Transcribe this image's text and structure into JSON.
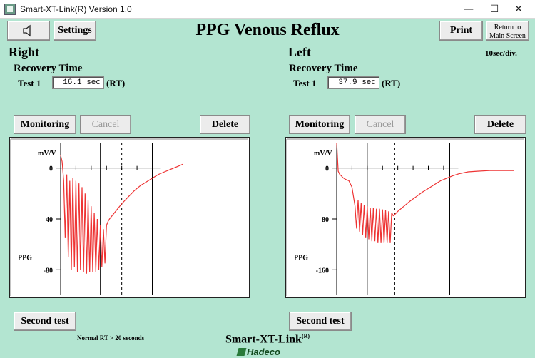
{
  "window": {
    "title": "Smart-XT-Link(R)  Version 1.0",
    "minimize": "—",
    "maximize": "☐",
    "close": "✕"
  },
  "toolbar": {
    "settings_label": "Settings",
    "print_label": "Print",
    "return_line1": "Return to",
    "return_line2": "Main Screen"
  },
  "header": {
    "title": "PPG Venous Reflux",
    "time_scale": "10sec/div."
  },
  "right": {
    "side_label": "Right",
    "recovery_label": "Recovery Time",
    "test_label": "Test 1",
    "rt_value": "16.1 sec",
    "rt_unit": "(RT)",
    "monitoring_label": "Monitoring",
    "cancel_label": "Cancel",
    "delete_label": "Delete",
    "second_test_label": "Second test"
  },
  "left": {
    "side_label": "Left",
    "recovery_label": "Recovery Time",
    "test_label": "Test 1",
    "rt_value": "37.9 sec",
    "rt_unit": "(RT)",
    "monitoring_label": "Monitoring",
    "cancel_label": "Cancel",
    "delete_label": "Delete",
    "second_test_label": "Second test"
  },
  "footer": {
    "normal_rt": "Normal RT > 20 seconds",
    "brand": "Smart-XT-Link",
    "brand_mark": "(R)",
    "logo": "Hadeco"
  },
  "chart_data": [
    {
      "type": "line",
      "side": "Right",
      "ylabel": "mV/V",
      "series_label": "PPG",
      "y_ticks": [
        0,
        -40,
        -80
      ],
      "ylim": [
        -100,
        20
      ],
      "xlim": [
        0,
        60
      ],
      "line_color": "#ee3333",
      "x": [
        0,
        0.5,
        1,
        1.5,
        2,
        2.5,
        3,
        3.5,
        4,
        4.5,
        5,
        5.5,
        6,
        6.5,
        7,
        7.5,
        8,
        8.5,
        9,
        9.5,
        10,
        10.5,
        11,
        11.5,
        12,
        12.5,
        13,
        13.5,
        14,
        14.5,
        15,
        15.5,
        16,
        17,
        18,
        20,
        22,
        24,
        26,
        28,
        30,
        32,
        34,
        36,
        38,
        40
      ],
      "y": [
        10,
        5,
        -10,
        -55,
        -5,
        -70,
        -10,
        -80,
        -8,
        -78,
        -10,
        -82,
        -12,
        -80,
        -15,
        -82,
        -20,
        -83,
        -25,
        -82,
        -30,
        -82,
        -35,
        -82,
        -40,
        -80,
        -45,
        -78,
        -48,
        -75,
        -45,
        -42,
        -40,
        -37,
        -34,
        -28,
        -23,
        -18,
        -14,
        -11,
        -8,
        -5,
        -3,
        -1,
        1,
        3
      ],
      "markers": [
        {
          "x": 13,
          "style": "solid"
        },
        {
          "x": 20,
          "style": "dashed"
        },
        {
          "x": 30,
          "style": "solid"
        }
      ]
    },
    {
      "type": "line",
      "side": "Left",
      "ylabel": "mV/V",
      "series_label": "PPG",
      "y_ticks": [
        0,
        -80,
        -160
      ],
      "ylim": [
        -200,
        40
      ],
      "xlim": [
        0,
        60
      ],
      "line_color": "#ee3333",
      "x": [
        0,
        0.5,
        1,
        1.5,
        2,
        3,
        4,
        5,
        6,
        6.5,
        7,
        7.5,
        8,
        8.5,
        9,
        9.5,
        10,
        10.5,
        11,
        11.5,
        12,
        12.5,
        13,
        13.5,
        14,
        14.5,
        15,
        15.5,
        16,
        16.5,
        17,
        17.5,
        18,
        18.5,
        19,
        20,
        22,
        24,
        26,
        28,
        30,
        32,
        34,
        36,
        38,
        40,
        43,
        46,
        50,
        54,
        58
      ],
      "y": [
        40,
        -5,
        -10,
        -12,
        -15,
        -18,
        -20,
        -30,
        -60,
        -95,
        -50,
        -100,
        -55,
        -105,
        -58,
        -110,
        -60,
        -112,
        -62,
        -115,
        -62,
        -115,
        -64,
        -118,
        -64,
        -118,
        -65,
        -118,
        -66,
        -118,
        -68,
        -118,
        -70,
        -75,
        -73,
        -68,
        -60,
        -52,
        -45,
        -38,
        -32,
        -26,
        -20,
        -16,
        -12,
        -9,
        -6,
        -5,
        -4,
        -4,
        -4
      ],
      "markers": [
        {
          "x": 10,
          "style": "solid"
        },
        {
          "x": 19,
          "style": "dashed"
        },
        {
          "x": 37,
          "style": "solid"
        }
      ]
    }
  ]
}
